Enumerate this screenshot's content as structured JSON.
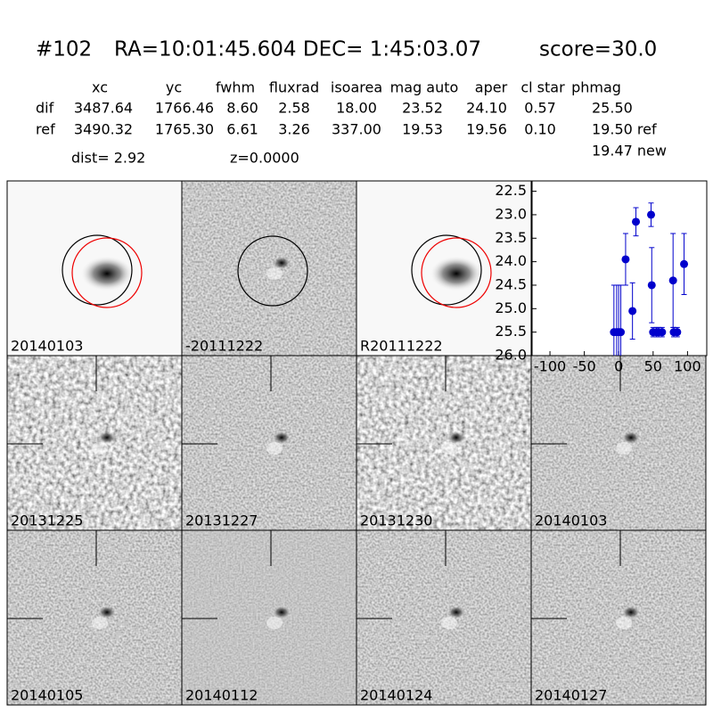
{
  "header": {
    "id": "#102",
    "coords": "RA=10:01:45.604 DEC= 1:45:03.07",
    "score": "score=30.0"
  },
  "table": {
    "columns": [
      "xc",
      "yc",
      "fwhm",
      "fluxrad",
      "isoarea",
      "mag auto",
      "aper",
      "cl star",
      "phmag"
    ],
    "rows": [
      {
        "label": "dif",
        "cells": [
          "3487.64",
          "1766.46",
          "8.60",
          "2.58",
          "18.00",
          "23.52",
          "24.10",
          "0.57",
          "25.50"
        ]
      },
      {
        "label": "ref",
        "cells": [
          "3490.32",
          "1765.30",
          "6.61",
          "3.26",
          "337.00",
          "19.53",
          "19.56",
          "0.10",
          "19.50 ref"
        ]
      }
    ],
    "extra": "19.47 new"
  },
  "dist": "dist=  2.92",
  "z": "z=0.0000",
  "stamps": [
    {
      "label": "20140103",
      "color": "#000000"
    },
    {
      "label": "-20111222",
      "color": "#000000"
    },
    {
      "label": "R20111222",
      "color": "#000000"
    },
    {
      "label": "20131225",
      "color": "#000000"
    },
    {
      "label": "20131227",
      "color": "#000000"
    },
    {
      "label": "20131230",
      "color": "#000000"
    },
    {
      "label": "20140103",
      "color": "#ff0000"
    },
    {
      "label": "20140105",
      "color": "#000000"
    },
    {
      "label": "20140112",
      "color": "#000000"
    },
    {
      "label": "20140124",
      "color": "#000000"
    },
    {
      "label": "20140127",
      "color": "#000000"
    }
  ],
  "chart_data": {
    "type": "scatter",
    "x": [
      -7,
      -3,
      0,
      3,
      10,
      20,
      25,
      47,
      48,
      50,
      55,
      58,
      63,
      79,
      80,
      85,
      95
    ],
    "series": [
      {
        "color": "#0000cc",
        "values": [
          25.5,
          25.5,
          25.5,
          25.5,
          23.95,
          25.05,
          23.15,
          23.0,
          24.5,
          25.5,
          25.5,
          25.5,
          25.5,
          24.4,
          25.5,
          25.5,
          24.05
        ],
        "errors": [
          1.0,
          1.0,
          1.0,
          1.0,
          0.55,
          0.6,
          0.3,
          0.25,
          0.8,
          0.1,
          0.1,
          0.1,
          0.1,
          1.0,
          0.1,
          0.1,
          0.65
        ]
      }
    ],
    "xlim": [
      -126,
      128
    ],
    "xticks": [
      -100,
      -50,
      0,
      50,
      100
    ],
    "ylim": [
      26.0,
      22.28
    ],
    "yticks": [
      22.5,
      {
        "value": 23,
        "label": "23.0"
      },
      23.5,
      {
        "value": 24,
        "label": "24.0"
      },
      24.5,
      {
        "value": 25,
        "label": "25.0"
      },
      25.5,
      {
        "value": 26,
        "label": "26.0"
      }
    ]
  }
}
